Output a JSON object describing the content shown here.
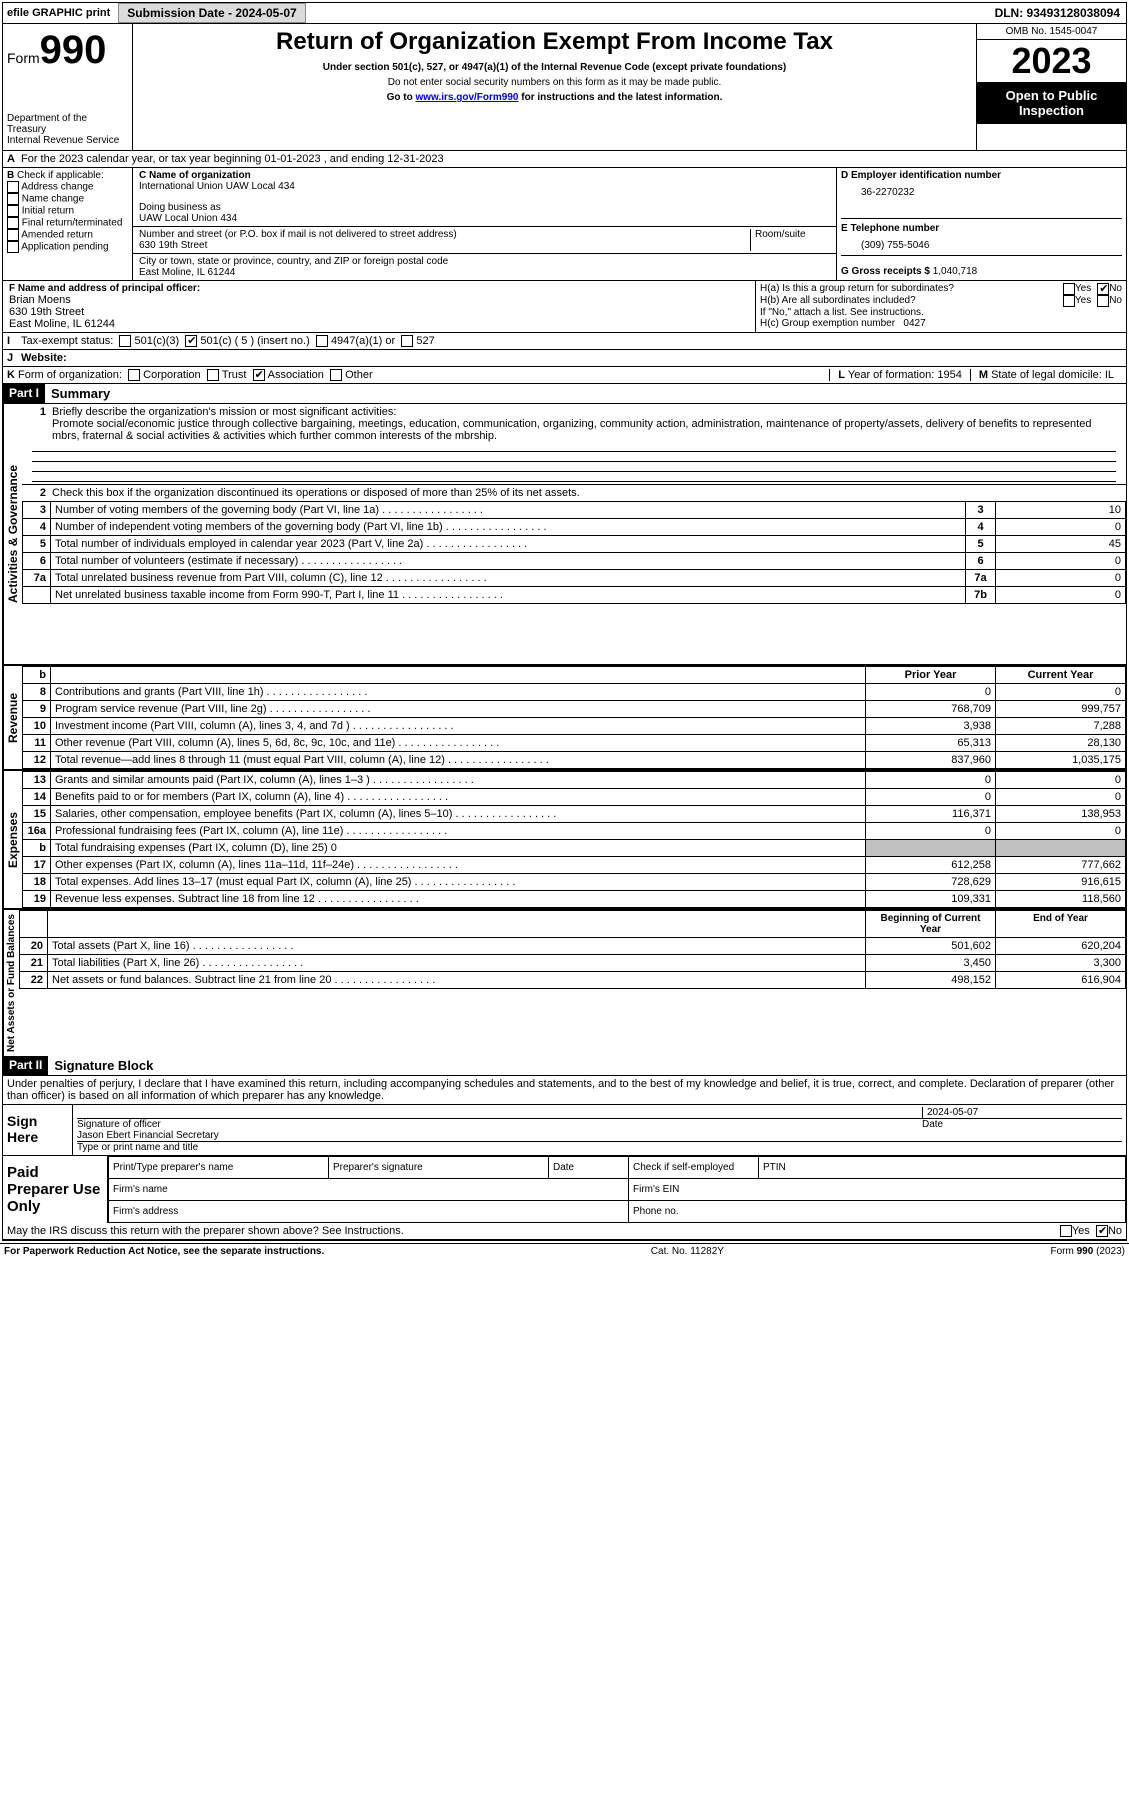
{
  "topbar": {
    "efile": "efile GRAPHIC print",
    "submission_label": "Submission Date - 2024-05-07",
    "dln": "DLN: 93493128038094"
  },
  "header": {
    "form_word": "Form",
    "form_no": "990",
    "dept": "Department of the Treasury",
    "irs": "Internal Revenue Service",
    "title": "Return of Organization Exempt From Income Tax",
    "subtitle": "Under section 501(c), 527, or 4947(a)(1) of the Internal Revenue Code (except private foundations)",
    "ssn_note": "Do not enter social security numbers on this form as it may be made public.",
    "goto_prefix": "Go to ",
    "goto_link": "www.irs.gov/Form990",
    "goto_suffix": " for instructions and the latest information.",
    "omb": "OMB No. 1545-0047",
    "year": "2023",
    "open_pub": "Open to Public Inspection"
  },
  "sectionA": {
    "a_label": "A",
    "a_text": "For the 2023 calendar year, or tax year beginning 01-01-2023   , and ending 12-31-2023"
  },
  "sectionB": {
    "label": "B",
    "check_label": "Check if applicable:",
    "items": [
      "Address change",
      "Name change",
      "Initial return",
      "Final return/terminated",
      "Amended return",
      "Application pending"
    ]
  },
  "sectionC": {
    "name_label": "C Name of organization",
    "name": "International Union UAW Local 434",
    "dba_label": "Doing business as",
    "dba": "UAW Local Union 434",
    "street_label": "Number and street (or P.O. box if mail is not delivered to street address)",
    "room_label": "Room/suite",
    "street": "630 19th Street",
    "city_label": "City or town, state or province, country, and ZIP or foreign postal code",
    "city": "East Moline, IL  61244"
  },
  "sectionD": {
    "label": "D Employer identification number",
    "ein": "36-2270232"
  },
  "sectionE": {
    "label": "E Telephone number",
    "phone": "(309) 755-5046"
  },
  "sectionG": {
    "label": "G Gross receipts $",
    "amount": "1,040,718"
  },
  "sectionF": {
    "label": "F  Name and address of principal officer:",
    "name": "Brian Moens",
    "street": "630 19th Street",
    "city": "East Moline, IL  61244"
  },
  "sectionH": {
    "ha": "H(a)  Is this a group return for subordinates?",
    "hb": "H(b)  Are all subordinates included?",
    "hb_note": "If \"No,\" attach a list. See instructions.",
    "hc": "H(c)  Group exemption number",
    "hc_val": "0427",
    "yes": "Yes",
    "no": "No"
  },
  "statusI": {
    "label": "I",
    "title": "Tax-exempt status:",
    "o1": "501(c)(3)",
    "o2": "501(c) ( 5 ) (insert no.)",
    "o3": "4947(a)(1) or",
    "o4": "527"
  },
  "statusJ": {
    "label": "J",
    "title": "Website:",
    "val": ""
  },
  "statusK": {
    "label": "K",
    "title": "Form of organization:",
    "o1": "Corporation",
    "o2": "Trust",
    "o3": "Association",
    "o4": "Other"
  },
  "statusL": {
    "label": "L",
    "title": "Year of formation:",
    "val": "1954"
  },
  "statusM": {
    "label": "M",
    "title": "State of legal domicile:",
    "val": "IL"
  },
  "part1": {
    "hdr": "Part I",
    "title": "Summary",
    "q1_label": "1",
    "q1": "Briefly describe the organization's mission or most significant activities:",
    "q1_text": "Promote social/economic justice through collective bargaining, meetings, education, communication, organizing, community action, administration, maintenance of property/assets, delivery of benefits to represented mbrs, fraternal & social activities & activities which further common interests of the mbrship.",
    "q2_label": "2",
    "q2": "Check this box        if the organization discontinued its operations or disposed of more than 25% of its net assets.",
    "vlabels": {
      "gov": "Activities & Governance",
      "rev": "Revenue",
      "exp": "Expenses",
      "net": "Net Assets or Fund Balances"
    },
    "col_prior": "Prior Year",
    "col_current": "Current Year",
    "col_begin": "Beginning of Current Year",
    "col_end": "End of Year",
    "lines_gov": [
      {
        "n": "3",
        "d": "Number of voting members of the governing body (Part VI, line 1a)",
        "box": "3",
        "v": "10"
      },
      {
        "n": "4",
        "d": "Number of independent voting members of the governing body (Part VI, line 1b)",
        "box": "4",
        "v": "0"
      },
      {
        "n": "5",
        "d": "Total number of individuals employed in calendar year 2023 (Part V, line 2a)",
        "box": "5",
        "v": "45"
      },
      {
        "n": "6",
        "d": "Total number of volunteers (estimate if necessary)",
        "box": "6",
        "v": "0"
      },
      {
        "n": "7a",
        "d": "Total unrelated business revenue from Part VIII, column (C), line 12",
        "box": "7a",
        "v": "0"
      },
      {
        "n": "",
        "d": "Net unrelated business taxable income from Form 990-T, Part I, line 11",
        "box": "7b",
        "v": "0"
      }
    ],
    "lines_rev": [
      {
        "n": "8",
        "d": "Contributions and grants (Part VIII, line 1h)",
        "p": "0",
        "c": "0"
      },
      {
        "n": "9",
        "d": "Program service revenue (Part VIII, line 2g)",
        "p": "768,709",
        "c": "999,757"
      },
      {
        "n": "10",
        "d": "Investment income (Part VIII, column (A), lines 3, 4, and 7d )",
        "p": "3,938",
        "c": "7,288"
      },
      {
        "n": "11",
        "d": "Other revenue (Part VIII, column (A), lines 5, 6d, 8c, 9c, 10c, and 11e)",
        "p": "65,313",
        "c": "28,130"
      },
      {
        "n": "12",
        "d": "Total revenue—add lines 8 through 11 (must equal Part VIII, column (A), line 12)",
        "p": "837,960",
        "c": "1,035,175"
      }
    ],
    "lines_exp": [
      {
        "n": "13",
        "d": "Grants and similar amounts paid (Part IX, column (A), lines 1–3 )",
        "p": "0",
        "c": "0"
      },
      {
        "n": "14",
        "d": "Benefits paid to or for members (Part IX, column (A), line 4)",
        "p": "0",
        "c": "0"
      },
      {
        "n": "15",
        "d": "Salaries, other compensation, employee benefits (Part IX, column (A), lines 5–10)",
        "p": "116,371",
        "c": "138,953"
      },
      {
        "n": "16a",
        "d": "Professional fundraising fees (Part IX, column (A), line 11e)",
        "p": "0",
        "c": "0"
      },
      {
        "n": "b",
        "d": "Total fundraising expenses (Part IX, column (D), line 25) 0",
        "p": "",
        "c": "",
        "g": true
      },
      {
        "n": "17",
        "d": "Other expenses (Part IX, column (A), lines 11a–11d, 11f–24e)",
        "p": "612,258",
        "c": "777,662"
      },
      {
        "n": "18",
        "d": "Total expenses. Add lines 13–17 (must equal Part IX, column (A), line 25)",
        "p": "728,629",
        "c": "916,615"
      },
      {
        "n": "19",
        "d": "Revenue less expenses. Subtract line 18 from line 12",
        "p": "109,331",
        "c": "118,560"
      }
    ],
    "lines_net": [
      {
        "n": "20",
        "d": "Total assets (Part X, line 16)",
        "p": "501,602",
        "c": "620,204"
      },
      {
        "n": "21",
        "d": "Total liabilities (Part X, line 26)",
        "p": "3,450",
        "c": "3,300"
      },
      {
        "n": "22",
        "d": "Net assets or fund balances. Subtract line 21 from line 20",
        "p": "498,152",
        "c": "616,904"
      }
    ]
  },
  "part2": {
    "hdr": "Part II",
    "title": "Signature Block",
    "perjury": "Under penalties of perjury, I declare that I have examined this return, including accompanying schedules and statements, and to the best of my knowledge and belief, it is true, correct, and complete. Declaration of preparer (other than officer) is based on all information of which preparer has any knowledge.",
    "sign_here": "Sign Here",
    "sig_officer": "Signature of officer",
    "date": "Date",
    "sig_date_val": "2024-05-07",
    "officer_name": "Jason Ebert Financial Secretary",
    "type_name": "Type or print name and title",
    "paid": "Paid Preparer Use Only",
    "pt_name": "Print/Type preparer's name",
    "pt_sig": "Preparer's signature",
    "pt_date": "Date",
    "check_self": "Check         if self-employed",
    "ptin": "PTIN",
    "firm_name": "Firm's name",
    "firm_ein": "Firm's EIN",
    "firm_addr": "Firm's address",
    "phone": "Phone no.",
    "discuss": "May the IRS discuss this return with the preparer shown above? See Instructions.",
    "yes": "Yes",
    "no": "No"
  },
  "footer": {
    "pra": "For Paperwork Reduction Act Notice, see the separate instructions.",
    "cat": "Cat. No. 11282Y",
    "form": "Form 990 (2023)"
  }
}
